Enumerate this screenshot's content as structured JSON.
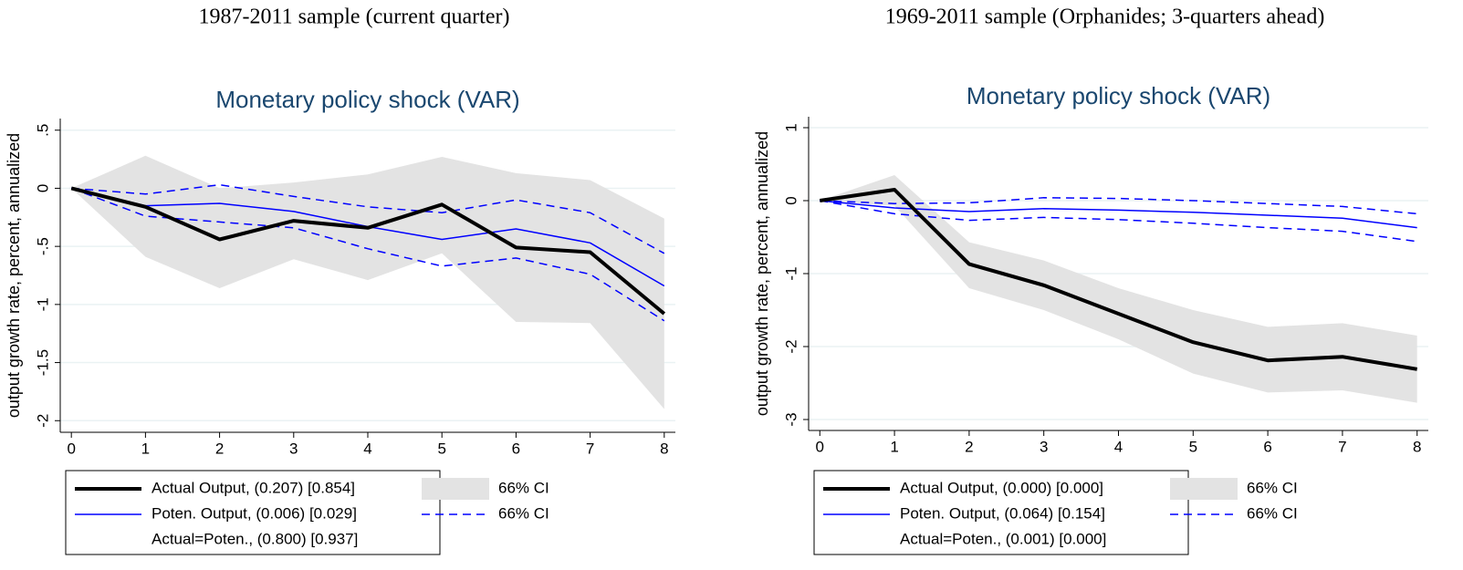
{
  "chart_data": [
    {
      "type": "line",
      "heading": "1987-2011 sample (current quarter)",
      "title": "Monetary policy shock (VAR)",
      "ylabel": "output growth rate, percent, annualized",
      "x": [
        0,
        1,
        2,
        3,
        4,
        5,
        6,
        7,
        8
      ],
      "xlim": [
        -0.15,
        8.15
      ],
      "xticks": [
        0,
        1,
        2,
        3,
        4,
        5,
        6,
        7,
        8
      ],
      "ylim": [
        -2.1,
        0.6
      ],
      "yticks": [
        {
          "value": 0.5,
          "label": ".5"
        },
        0,
        {
          "value": -0.5,
          "label": "-.5"
        },
        -1,
        -1.5,
        -2
      ],
      "grid": true,
      "series": [
        {
          "name": "Actual Output, (0.207) [0.854]",
          "color": "#000000",
          "width": 4,
          "values": [
            0,
            -0.16,
            -0.44,
            -0.28,
            -0.34,
            -0.14,
            -0.51,
            -0.55,
            -1.08
          ]
        },
        {
          "name": "Poten. Output, (0.006) [0.029]",
          "color": "#0000ff",
          "width": 1.5,
          "values": [
            0,
            -0.15,
            -0.13,
            -0.2,
            -0.33,
            -0.44,
            -0.35,
            -0.47,
            -0.84
          ]
        }
      ],
      "intervals": [
        {
          "name": "66% CI",
          "style": "area",
          "color": "#e3e3e3",
          "upper": [
            0,
            0.28,
            0.0,
            0.05,
            0.12,
            0.27,
            0.13,
            0.07,
            -0.26
          ],
          "lower": [
            0,
            -0.59,
            -0.86,
            -0.61,
            -0.79,
            -0.56,
            -1.15,
            -1.16,
            -1.9
          ]
        },
        {
          "name": "66% CI",
          "style": "dashed",
          "color": "#0000ff",
          "upper": [
            0,
            -0.05,
            0.03,
            -0.07,
            -0.16,
            -0.21,
            -0.1,
            -0.21,
            -0.56
          ],
          "lower": [
            0,
            -0.24,
            -0.29,
            -0.34,
            -0.52,
            -0.67,
            -0.6,
            -0.74,
            -1.14
          ]
        }
      ],
      "legend_note": "Actual=Poten., (0.800) [0.937]"
    },
    {
      "type": "line",
      "heading": "1969-2011 sample (Orphanides; 3-quarters ahead)",
      "title": "Monetary policy shock (VAR)",
      "ylabel": "output growth rate, percent, annualized",
      "x": [
        0,
        1,
        2,
        3,
        4,
        5,
        6,
        7,
        8
      ],
      "xlim": [
        -0.15,
        8.15
      ],
      "xticks": [
        0,
        1,
        2,
        3,
        4,
        5,
        6,
        7,
        8
      ],
      "ylim": [
        -3.15,
        1.15
      ],
      "yticks": [
        1,
        0,
        -1,
        -2,
        -3
      ],
      "grid": true,
      "series": [
        {
          "name": "Actual Output, (0.000) [0.000]",
          "color": "#000000",
          "width": 4,
          "values": [
            0,
            0.15,
            -0.87,
            -1.16,
            -1.55,
            -1.94,
            -2.19,
            -2.14,
            -2.31
          ]
        },
        {
          "name": "Poten. Output, (0.064) [0.154]",
          "color": "#0000ff",
          "width": 1.5,
          "values": [
            0,
            -0.1,
            -0.15,
            -0.11,
            -0.13,
            -0.16,
            -0.2,
            -0.24,
            -0.37
          ]
        }
      ],
      "intervals": [
        {
          "name": "66% CI",
          "style": "area",
          "color": "#e3e3e3",
          "upper": [
            0,
            0.35,
            -0.57,
            -0.82,
            -1.2,
            -1.5,
            -1.73,
            -1.68,
            -1.85
          ],
          "lower": [
            0,
            -0.07,
            -1.2,
            -1.5,
            -1.9,
            -2.37,
            -2.63,
            -2.6,
            -2.77
          ]
        },
        {
          "name": "66% CI",
          "style": "dashed",
          "color": "#0000ff",
          "upper": [
            0,
            -0.04,
            -0.03,
            0.04,
            0.03,
            0.0,
            -0.04,
            -0.08,
            -0.18
          ],
          "lower": [
            0,
            -0.18,
            -0.27,
            -0.23,
            -0.26,
            -0.31,
            -0.37,
            -0.42,
            -0.56
          ]
        }
      ],
      "legend_note": "Actual=Poten., (0.001) [0.000]"
    }
  ]
}
